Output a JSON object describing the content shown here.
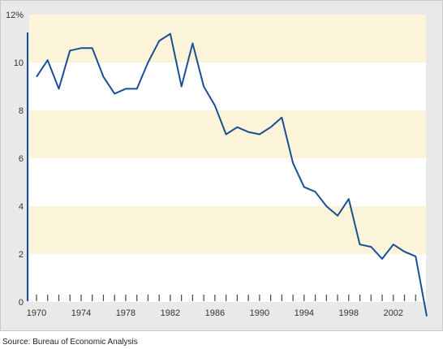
{
  "chart_data": {
    "type": "line",
    "title": "",
    "xlabel": "",
    "ylabel": "",
    "ylim": [
      0,
      12
    ],
    "xlim": [
      1970,
      2005
    ],
    "y_ticks": [
      0,
      2,
      4,
      6,
      8,
      10,
      12
    ],
    "y_tick_labels": [
      "0",
      "2",
      "4",
      "6",
      "8",
      "10",
      "12%"
    ],
    "x_ticks": [
      1970,
      1974,
      1978,
      1982,
      1986,
      1990,
      1994,
      1998,
      2002
    ],
    "x_tick_labels": [
      "1970",
      "1974",
      "1978",
      "1982",
      "1986",
      "1990",
      "1994",
      "1998",
      "2002"
    ],
    "grid": "alternating horizontal bands",
    "band_color": "#fbf4d9",
    "line_color": "#1a4f96",
    "series": [
      {
        "x": [
          1970,
          1971,
          1972,
          1973,
          1974,
          1975,
          1976,
          1977,
          1978,
          1979,
          1980,
          1981,
          1982,
          1983,
          1984,
          1985,
          1986,
          1987,
          1988,
          1989,
          1990,
          1991,
          1992,
          1993,
          1994,
          1995,
          1996,
          1997,
          1998,
          1999,
          2000,
          2001,
          2002,
          2003,
          2004,
          2005
        ],
        "values": [
          9.4,
          10.1,
          8.9,
          10.5,
          10.6,
          10.6,
          9.4,
          8.7,
          8.9,
          8.9,
          10.0,
          10.9,
          11.2,
          9.0,
          10.8,
          9.0,
          8.2,
          7.0,
          7.3,
          7.1,
          7.0,
          7.3,
          7.7,
          5.8,
          4.8,
          4.6,
          4.0,
          3.6,
          4.3,
          2.4,
          2.3,
          1.8,
          2.4,
          2.1,
          1.9,
          -0.6
        ]
      }
    ]
  },
  "source": "Source: Bureau of Economic Analysis"
}
